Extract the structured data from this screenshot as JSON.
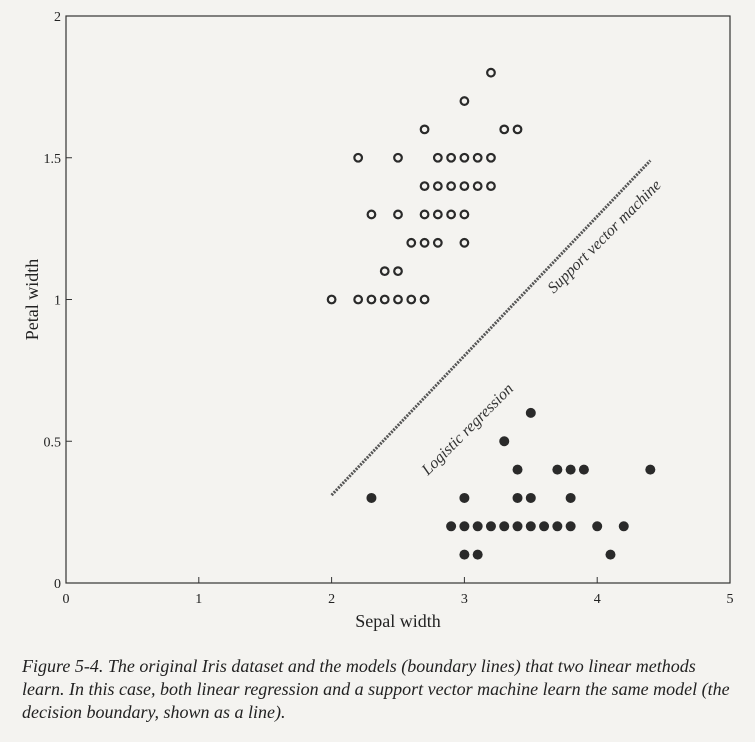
{
  "chart_data": {
    "type": "scatter",
    "title": "",
    "xlabel": "Sepal width",
    "ylabel": "Petal width",
    "xlim": [
      0,
      5
    ],
    "ylim": [
      0,
      2
    ],
    "xticks": [
      "0",
      "1",
      "2",
      "3",
      "4",
      "5"
    ],
    "yticks": [
      "0",
      "0.5",
      "1",
      "1.5",
      "2"
    ],
    "grid": false,
    "series": [
      {
        "marker": "hollow-circle",
        "points": [
          [
            2.0,
            1.0
          ],
          [
            2.2,
            1.0
          ],
          [
            2.3,
            1.0
          ],
          [
            2.4,
            1.0
          ],
          [
            2.5,
            1.0
          ],
          [
            2.6,
            1.0
          ],
          [
            2.7,
            1.0
          ],
          [
            2.4,
            1.1
          ],
          [
            2.5,
            1.1
          ],
          [
            2.6,
            1.2
          ],
          [
            2.7,
            1.2
          ],
          [
            2.8,
            1.2
          ],
          [
            3.0,
            1.2
          ],
          [
            2.3,
            1.3
          ],
          [
            2.5,
            1.3
          ],
          [
            2.7,
            1.3
          ],
          [
            2.8,
            1.3
          ],
          [
            2.9,
            1.3
          ],
          [
            3.0,
            1.3
          ],
          [
            2.7,
            1.4
          ],
          [
            2.8,
            1.4
          ],
          [
            2.9,
            1.4
          ],
          [
            3.0,
            1.4
          ],
          [
            3.1,
            1.4
          ],
          [
            3.2,
            1.4
          ],
          [
            2.2,
            1.5
          ],
          [
            2.5,
            1.5
          ],
          [
            2.8,
            1.5
          ],
          [
            2.9,
            1.5
          ],
          [
            3.0,
            1.5
          ],
          [
            3.1,
            1.5
          ],
          [
            3.2,
            1.5
          ],
          [
            2.7,
            1.6
          ],
          [
            3.3,
            1.6
          ],
          [
            3.4,
            1.6
          ],
          [
            3.0,
            1.7
          ],
          [
            3.2,
            1.8
          ]
        ]
      },
      {
        "marker": "filled-circle",
        "points": [
          [
            3.0,
            0.1
          ],
          [
            3.1,
            0.1
          ],
          [
            4.1,
            0.1
          ],
          [
            2.9,
            0.2
          ],
          [
            3.0,
            0.2
          ],
          [
            3.1,
            0.2
          ],
          [
            3.2,
            0.2
          ],
          [
            3.3,
            0.2
          ],
          [
            3.4,
            0.2
          ],
          [
            3.5,
            0.2
          ],
          [
            3.6,
            0.2
          ],
          [
            3.7,
            0.2
          ],
          [
            3.8,
            0.2
          ],
          [
            4.0,
            0.2
          ],
          [
            4.2,
            0.2
          ],
          [
            2.3,
            0.3
          ],
          [
            3.0,
            0.3
          ],
          [
            3.4,
            0.3
          ],
          [
            3.5,
            0.3
          ],
          [
            3.8,
            0.3
          ],
          [
            3.4,
            0.4
          ],
          [
            3.7,
            0.4
          ],
          [
            3.8,
            0.4
          ],
          [
            3.9,
            0.4
          ],
          [
            4.4,
            0.4
          ],
          [
            3.3,
            0.5
          ],
          [
            3.5,
            0.6
          ]
        ]
      }
    ],
    "boundary": {
      "from": [
        2.0,
        0.31
      ],
      "to": [
        4.4,
        1.49
      ]
    },
    "annotations": [
      {
        "text": "Logistic regression",
        "at": [
          3.05,
          0.53
        ],
        "angle": -45
      },
      {
        "text": "Support vector machine",
        "at": [
          4.08,
          1.21
        ],
        "angle": -45
      }
    ]
  },
  "caption": "Figure 5-4. The original Iris dataset and the models (boundary lines) that two linear methods learn. In this case, both linear regression and a support vector machine learn the same model (the decision boundary, shown as a line)."
}
